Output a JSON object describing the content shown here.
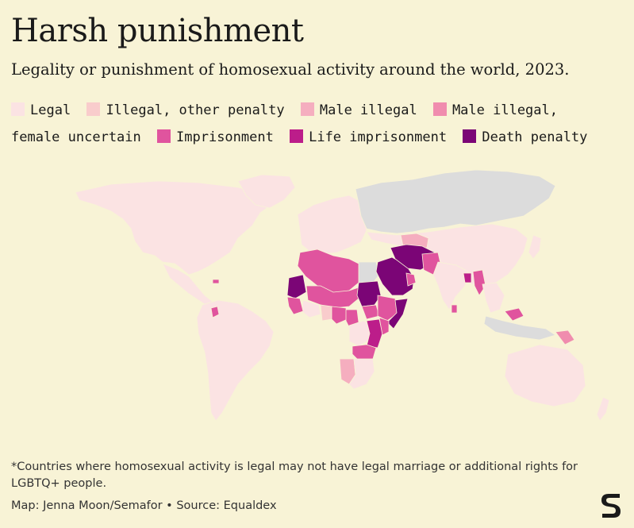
{
  "title": "Harsh punishment",
  "subtitle": "Legality or punishment of homosexual activity around the world, 2023.",
  "legend": [
    {
      "label": "Legal",
      "color": "#fbe3e3"
    },
    {
      "label": "Illegal, other penalty",
      "color": "#f9cccc"
    },
    {
      "label": "Male illegal",
      "color": "#f5aebf"
    },
    {
      "label": "Male illegal, female uncertain",
      "color": "#f08cae"
    },
    {
      "label": "Imprisonment",
      "color": "#e0549e"
    },
    {
      "label": "Life imprisonment",
      "color": "#bc1d8a"
    },
    {
      "label": "Death penalty",
      "color": "#7b0576"
    }
  ],
  "no_data_color": "#dcdcdc",
  "map": {
    "regions": [
      {
        "name": "north-america",
        "category": "Legal"
      },
      {
        "name": "greenland",
        "category": "Legal"
      },
      {
        "name": "central-america",
        "category": "Legal"
      },
      {
        "name": "caribbean-jamaica",
        "category": "Imprisonment"
      },
      {
        "name": "south-america",
        "category": "Legal"
      },
      {
        "name": "guyana",
        "category": "Imprisonment"
      },
      {
        "name": "europe",
        "category": "Legal"
      },
      {
        "name": "russia",
        "category": "no-data"
      },
      {
        "name": "central-asia-china",
        "category": "Legal"
      },
      {
        "name": "turkmenistan-uzbekistan",
        "category": "Male illegal"
      },
      {
        "name": "egypt",
        "category": "no-data"
      },
      {
        "name": "morocco-algeria-tunisia-libya",
        "category": "Imprisonment"
      },
      {
        "name": "mauritania",
        "category": "Death penalty"
      },
      {
        "name": "mali-niger-chad",
        "category": "Imprisonment"
      },
      {
        "name": "west-africa-legal",
        "category": "Legal"
      },
      {
        "name": "senegal-guinea",
        "category": "Imprisonment"
      },
      {
        "name": "ghana-togo",
        "category": "Illegal, other penalty"
      },
      {
        "name": "nigeria",
        "category": "Imprisonment"
      },
      {
        "name": "sudan",
        "category": "Death penalty"
      },
      {
        "name": "south-sudan",
        "category": "Imprisonment"
      },
      {
        "name": "ethiopia-eritrea",
        "category": "Imprisonment"
      },
      {
        "name": "somalia",
        "category": "Death penalty"
      },
      {
        "name": "cameroon",
        "category": "Imprisonment"
      },
      {
        "name": "central-africa-legal",
        "category": "Legal"
      },
      {
        "name": "uganda-tanzania",
        "category": "Life imprisonment"
      },
      {
        "name": "kenya",
        "category": "Imprisonment"
      },
      {
        "name": "zambia-malawi",
        "category": "Imprisonment"
      },
      {
        "name": "namibia",
        "category": "Male illegal"
      },
      {
        "name": "southern-africa-legal",
        "category": "Legal"
      },
      {
        "name": "saudi-arabia-yemen",
        "category": "Death penalty"
      },
      {
        "name": "iran-afghanistan",
        "category": "Death penalty"
      },
      {
        "name": "gulf-states",
        "category": "Imprisonment"
      },
      {
        "name": "pakistan",
        "category": "Imprisonment"
      },
      {
        "name": "india",
        "category": "Legal"
      },
      {
        "name": "myanmar",
        "category": "Imprisonment"
      },
      {
        "name": "bangladesh",
        "category": "Life imprisonment"
      },
      {
        "name": "sri-lanka",
        "category": "Imprisonment"
      },
      {
        "name": "southeast-asia-legal",
        "category": "Legal"
      },
      {
        "name": "malaysia-brunei",
        "category": "Imprisonment"
      },
      {
        "name": "indonesia",
        "category": "no-data"
      },
      {
        "name": "papua-new-guinea",
        "category": "Male illegal, female uncertain"
      },
      {
        "name": "australia",
        "category": "Legal"
      },
      {
        "name": "new-zealand",
        "category": "Legal"
      },
      {
        "name": "japan",
        "category": "Legal"
      }
    ]
  },
  "footnote": "*Countries where homosexual activity is legal may not have legal marriage or additional rights for LGBTQ+ people.",
  "credit": "Map: Jenna Moon/Semafor • Source: Equaldex"
}
